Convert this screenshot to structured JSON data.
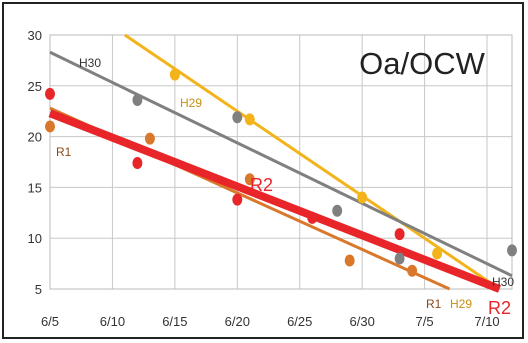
{
  "chart_data": {
    "type": "scatter",
    "title": "Oa/OCW",
    "xlabel": "",
    "ylabel": "",
    "x_ticks": [
      "6/5",
      "6/10",
      "6/15",
      "6/20",
      "6/25",
      "6/30",
      "7/5",
      "7/10"
    ],
    "y_ticks": [
      5,
      10,
      15,
      20,
      25,
      30
    ],
    "ylim": [
      5,
      30
    ],
    "x_range_days": [
      "6/5",
      "7/12"
    ],
    "grid": true,
    "series": [
      {
        "name": "H30",
        "color": "#808080",
        "points": [
          [
            "6/12",
            23.6
          ],
          [
            "6/20",
            21.9
          ],
          [
            "6/28",
            12.7
          ],
          [
            "7/3",
            8.0
          ],
          [
            "7/12",
            8.8
          ]
        ],
        "trend": [
          [
            "6/5",
            28.3
          ],
          [
            "7/12",
            6.3
          ]
        ]
      },
      {
        "name": "H29",
        "color": "#f2b41a",
        "points": [
          [
            "6/15",
            26.1
          ],
          [
            "6/21",
            21.7
          ],
          [
            "6/30",
            14.0
          ],
          [
            "7/6",
            8.5
          ]
        ],
        "trend": [
          [
            "6/11",
            30.0
          ],
          [
            "7/11",
            5.0
          ]
        ]
      },
      {
        "name": "R1",
        "color": "#d9782a",
        "points": [
          [
            "6/5",
            21.0
          ],
          [
            "6/13",
            19.8
          ],
          [
            "6/21",
            15.8
          ],
          [
            "6/29",
            7.8
          ],
          [
            "7/4",
            6.8
          ]
        ],
        "trend": [
          [
            "6/5",
            22.8
          ],
          [
            "7/7",
            5.0
          ]
        ]
      },
      {
        "name": "R2",
        "color": "#e8262a",
        "points": [
          [
            "6/5",
            24.2
          ],
          [
            "6/12",
            17.4
          ],
          [
            "6/20",
            13.8
          ],
          [
            "6/26",
            12.0
          ],
          [
            "7/3",
            10.4
          ]
        ],
        "trend": [
          [
            "6/5",
            22.3
          ],
          [
            "7/11",
            5.0
          ]
        ]
      }
    ]
  }
}
